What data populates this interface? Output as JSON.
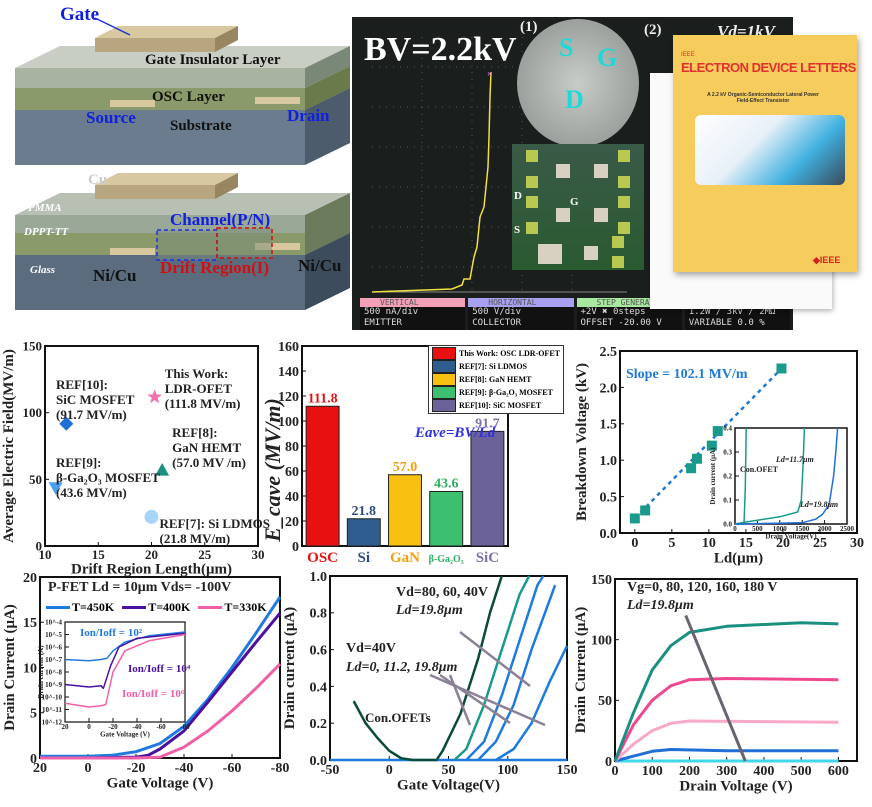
{
  "device_diagram": {
    "top": {
      "gate": "Gate",
      "gate_insulator": "Gate Insulator Layer",
      "osc": "OSC Layer",
      "source": "Source",
      "drain": "Drain",
      "substrate": "Substrate"
    },
    "bottom": {
      "cu": "Cu",
      "pmma": "PMMA",
      "dppt": "DPPT-TT",
      "glass": "Glass",
      "nicu_left": "Ni/Cu",
      "nicu_right": "Ni/Cu",
      "channel": "Channel(P/N)",
      "drift": "Drift Region(I)"
    }
  },
  "photo": {
    "bv_label": "BV=2.2kV",
    "panel1": "(1)",
    "panel2": "(2)",
    "vd_label": "Vd=1kV",
    "probe_s": "S",
    "probe_g": "G",
    "probe_d": "D",
    "pad_d": "D",
    "pad_g": "G",
    "pad_s": "S",
    "scope": [
      {
        "title": "VERTICAL",
        "line1": "500 nA/div",
        "line2": "EMITTER",
        "color": "#f4a0b8"
      },
      {
        "title": "HORIZONTAL",
        "line1": "500  V/div",
        "line2": "COLLECTOR",
        "color": "#a8a0f0"
      },
      {
        "title": "STEP GENERATOR",
        "line1": "+2V  ✖ 0steps",
        "line2": "OFFSET -20.00 V",
        "color": "#a8e8a0"
      },
      {
        "title": "",
        "line1": "1.2W /  3kV /   2MΩ",
        "line2": "VARIABLE     0.0 %",
        "color": "#f0c060"
      }
    ],
    "cover": {
      "ieee": "IEEE",
      "journal": "ELECTRON DEVICE LETTERS",
      "article": "A 2.2 kV Organic-Semiconductor Lateral Power Field-Effect Transistor",
      "brand": "◆IEEE"
    }
  },
  "chart_data": [
    {
      "id": "efield",
      "type": "scatter",
      "xlabel": "Drift Region Length(μm)",
      "ylabel": "Average Electric Field(MV/m)",
      "xlim": [
        10,
        30
      ],
      "ylim": [
        0,
        150
      ],
      "xticks": [
        10,
        15,
        20,
        25,
        30
      ],
      "yticks": [
        0,
        50,
        100,
        150
      ],
      "points": [
        {
          "x": 12,
          "y": 91.7,
          "marker": "diamond",
          "color": "#1f6fd6",
          "label": [
            "REF[10]:",
            "SiC MOSFET",
            "(91.7 MV/m)"
          ]
        },
        {
          "x": 20.3,
          "y": 111.8,
          "marker": "star",
          "color": "#f070b0",
          "label": [
            "This Work:",
            "LDR-OFET",
            "(111.8 MV/m)"
          ]
        },
        {
          "x": 21,
          "y": 57.0,
          "marker": "triangle",
          "color": "#1a9080",
          "label": [
            "REF[8]:",
            "GaN HEMT",
            "(57.0 MV /m)"
          ]
        },
        {
          "x": 11,
          "y": 43.6,
          "marker": "triangle-down",
          "color": "#4aa0f0",
          "label": [
            "REF[9]:",
            "β-Ga₂O₃ MOSFET",
            "(43.6 MV/m)"
          ]
        },
        {
          "x": 20,
          "y": 21.8,
          "marker": "circle",
          "color": "#a8d4f8",
          "label": [
            "REF[7]: Si LDMOS",
            "(21.8 MV/m)"
          ]
        }
      ]
    },
    {
      "id": "eave",
      "type": "bar",
      "ylabel": "E_cave (MV/m)",
      "ylim": [
        0,
        160
      ],
      "yticks": [
        0,
        20,
        40,
        60,
        80,
        100,
        120,
        140,
        160
      ],
      "categories": [
        "OSC",
        "Si",
        "GaN",
        "β-Ga₂O₃",
        "SiC"
      ],
      "values": [
        111.8,
        21.8,
        57.0,
        43.6,
        91.7
      ],
      "value_labels": [
        "111.8",
        "21.8",
        "57.0",
        "43.6",
        "91.7"
      ],
      "colors": [
        "#e81010",
        "#2e5d8e",
        "#f8c010",
        "#3cc070",
        "#6a6298"
      ],
      "label_colors": [
        "#e81010",
        "#2e4a7e",
        "#f0a010",
        "#30b060",
        "#7a72a8"
      ],
      "legend": [
        "This Work: OSC LDR-OFET",
        "REF[7]: Si LDMOS",
        "REF[8]: GaN HEMT",
        "REF[9]: β-Ga₂O₃ MOSFET",
        "REF[10]: SiC MOSFET"
      ],
      "legend_placement": "top-right",
      "annotation": "Eave=BV/Ld"
    },
    {
      "id": "bv",
      "type": "scatter",
      "xlabel": "Ld(μm)",
      "ylabel": "Breakdown Voltage (kV)",
      "xlim": [
        -2,
        30
      ],
      "ylim": [
        0,
        2.5
      ],
      "xticks": [
        0,
        5,
        10,
        15,
        20,
        25,
        30
      ],
      "yticks": [
        0,
        0.5,
        1.0,
        1.5,
        2.0,
        2.5
      ],
      "ytick_labels": [
        "0.0",
        "0.5",
        "1.0",
        "1.5",
        "2.0",
        "2.5"
      ],
      "points": [
        {
          "x": 0,
          "y": 0.2
        },
        {
          "x": 1.4,
          "y": 0.31
        },
        {
          "x": 7.6,
          "y": 0.89
        },
        {
          "x": 8.4,
          "y": 1.02
        },
        {
          "x": 10.4,
          "y": 1.2
        },
        {
          "x": 11.2,
          "y": 1.4
        },
        {
          "x": 19.8,
          "y": 2.26
        }
      ],
      "marker_color": "#1a9a8a",
      "fit_color": "#1f7ad6",
      "annotation": "Slope = 102.1 MV/m",
      "inset": {
        "xlabel": "Drain Voltage(V)",
        "ylabel": "Drain current (μA)",
        "xlim": [
          0,
          2500
        ],
        "ylim": [
          0,
          0.4
        ],
        "xticks": [
          0,
          500,
          1000,
          1500,
          2000,
          2500
        ],
        "yticks": [
          0,
          0.1,
          0.2,
          0.3,
          0.4
        ],
        "ytick_labels": [
          "0.0",
          "0.1",
          "0.2",
          "0.3",
          "0.4"
        ],
        "series": [
          {
            "name": "Con.OFET",
            "color": "#1a9a8a",
            "x": [
              0,
              200,
              230,
              250
            ],
            "y": [
              0,
              0,
              0.15,
              0.4
            ]
          },
          {
            "name": "Ld=11.7μm",
            "color": "#1a9a8a",
            "x": [
              0,
              300,
              1000,
              1400,
              1480,
              1520,
              1550
            ],
            "y": [
              0,
              0.01,
              0.03,
              0.05,
              0.1,
              0.25,
              0.4
            ]
          },
          {
            "name": "Ld=19.8μm",
            "color": "#1f6fd6",
            "x": [
              0,
              1500,
              1800,
              1950,
              2100,
              2200,
              2250,
              2290
            ],
            "y": [
              0,
              0.005,
              0.02,
              0.04,
              0.08,
              0.2,
              0.3,
              0.4
            ]
          }
        ]
      }
    },
    {
      "id": "transfer_T",
      "type": "line",
      "title": "P-FET  Ld = 10μm Vds= -100V",
      "xlabel": "Gate Voltage (V)",
      "ylabel": "Drain Current (μA)",
      "xlim": [
        20,
        -80
      ],
      "ylim": [
        0,
        20
      ],
      "xticks": [
        20,
        0,
        -20,
        -40,
        -60,
        -80
      ],
      "yticks": [
        0,
        5,
        10,
        15,
        20
      ],
      "legend_placement": "top",
      "series": [
        {
          "name": "T=450K",
          "color": "#1f7ae0",
          "x": [
            20,
            0,
            -10,
            -20,
            -30,
            -40,
            -50,
            -60,
            -70,
            -80
          ],
          "y": [
            0.2,
            0.2,
            0.3,
            0.7,
            1.6,
            3.5,
            6.5,
            10,
            13.8,
            17.8
          ]
        },
        {
          "name": "T=400K",
          "color": "#4a10a0",
          "x": [
            20,
            0,
            -20,
            -25,
            -30,
            -40,
            -50,
            -60,
            -70,
            -80
          ],
          "y": [
            0,
            0,
            0.1,
            0.3,
            1.0,
            3.0,
            6.2,
            9.5,
            12.8,
            16
          ]
        },
        {
          "name": "T=330K",
          "color": "#f060a8",
          "x": [
            20,
            -20,
            -30,
            -40,
            -50,
            -60,
            -70,
            -80
          ],
          "y": [
            0,
            0,
            0.1,
            1.2,
            3.0,
            5.2,
            7.7,
            10.4
          ]
        }
      ],
      "inset": {
        "xlabel": "Gate Voltage (V)",
        "ylabel": "Drain current (A)",
        "xlim": [
          20,
          -80
        ],
        "ylim_log10": [
          -12,
          -4
        ],
        "xticks": [
          20,
          0,
          -20,
          -40,
          -60,
          -80
        ],
        "yticks_log10": [
          -12,
          -11,
          -10,
          -9,
          -8,
          -7,
          -6,
          -5,
          -4
        ],
        "series": [
          {
            "name": "T=450K",
            "color": "#1f7ae0",
            "x": [
              20,
              0,
              -10,
              -15,
              -20,
              -30,
              -50,
              -80
            ],
            "log10y": [
              -7,
              -7.1,
              -7,
              -6.9,
              -6.3,
              -5.6,
              -5.1,
              -4.8
            ]
          },
          {
            "name": "T=400K",
            "color": "#4a10a0",
            "x": [
              20,
              0,
              -10,
              -12,
              -18,
              -25,
              -40,
              -80
            ],
            "log10y": [
              -9,
              -9.2,
              -9.1,
              -9.3,
              -7.5,
              -6,
              -5.3,
              -4.9
            ]
          },
          {
            "name": "T=330K",
            "color": "#f060a8",
            "x": [
              20,
              0,
              -10,
              -14,
              -20,
              -30,
              -50,
              -80
            ],
            "log10y": [
              -10.5,
              -10.8,
              -10.7,
              -10.6,
              -8,
              -6.3,
              -5.5,
              -5.0
            ]
          }
        ],
        "annotations": [
          "Ion/Ioff = 10²",
          "Ion/Ioff = 10⁴",
          "Ion/Ioff = 10⁶"
        ]
      }
    },
    {
      "id": "transfer_Ld",
      "type": "line",
      "xlabel": "Gate Voltage(V)",
      "ylabel": "Drain current (μA)",
      "xlim": [
        -50,
        150
      ],
      "ylim": [
        0,
        1.0
      ],
      "xticks": [
        -50,
        0,
        50,
        100,
        150
      ],
      "yticks": [
        0,
        0.2,
        0.4,
        0.6,
        0.8,
        1.0
      ],
      "ytick_labels": [
        "0.0",
        "0.2",
        "0.4",
        "0.6",
        "0.8",
        "1.0"
      ],
      "series": [
        {
          "color": "#1f7ae0",
          "x": [
            -50,
            150
          ],
          "y": [
            0,
            0
          ]
        },
        {
          "color": "#0a4a3a",
          "x": [
            -30,
            -20,
            -10,
            0,
            10,
            20,
            40,
            45,
            60,
            75,
            85,
            95
          ],
          "y": [
            0.32,
            0.2,
            0.12,
            0.05,
            0.01,
            0,
            0,
            0.05,
            0.25,
            0.55,
            0.8,
            1.0
          ]
        },
        {
          "color": "#1a9a8a",
          "x": [
            55,
            65,
            80,
            95,
            110,
            118
          ],
          "y": [
            0,
            0.06,
            0.3,
            0.6,
            0.9,
            1.0
          ]
        },
        {
          "color": "#1f7ae0",
          "x": [
            65,
            80,
            95,
            110,
            125,
            130
          ],
          "y": [
            0,
            0.1,
            0.35,
            0.65,
            0.95,
            1.0
          ]
        },
        {
          "color": "#1f7ae0",
          "x": [
            75,
            90,
            105,
            120,
            140
          ],
          "y": [
            0,
            0.1,
            0.3,
            0.6,
            0.95
          ]
        },
        {
          "color": "#1f7ae0",
          "x": [
            90,
            105,
            120,
            135,
            150
          ],
          "y": [
            0,
            0.06,
            0.2,
            0.42,
            0.62
          ]
        }
      ],
      "annotations": [
        "Vd=80, 60, 40V",
        "Ld=19.8μm",
        "Vd=40V",
        "Ld=0, 11.2, 19.8μm",
        "Con.OFETs"
      ]
    },
    {
      "id": "output",
      "type": "line",
      "xlabel": "Drain Voltage (V)",
      "ylabel": "Drain Current (μA)",
      "xlim": [
        0,
        650
      ],
      "ylim": [
        0,
        150
      ],
      "xticks": [
        0,
        100,
        200,
        300,
        400,
        500,
        600
      ],
      "yticks": [
        0,
        50,
        100,
        150
      ],
      "series": [
        {
          "color": "#40d8e8",
          "x": [
            0,
            600
          ],
          "y": [
            0,
            0
          ]
        },
        {
          "color": "#1f6fd6",
          "x": [
            0,
            50,
            100,
            150,
            300,
            600
          ],
          "y": [
            0,
            4,
            8,
            9.5,
            8.5,
            8.5
          ]
        },
        {
          "color": "#f8a8c8",
          "x": [
            0,
            50,
            100,
            150,
            200,
            600
          ],
          "y": [
            0,
            14,
            25,
            31,
            33,
            32
          ]
        },
        {
          "color": "#f04890",
          "x": [
            0,
            50,
            100,
            150,
            200,
            300,
            600
          ],
          "y": [
            0,
            30,
            50,
            62,
            67,
            68,
            67
          ]
        },
        {
          "color": "#1a9080",
          "x": [
            0,
            50,
            100,
            150,
            200,
            300,
            500,
            600
          ],
          "y": [
            0,
            40,
            75,
            95,
            106,
            111,
            114,
            113
          ]
        }
      ],
      "annotations": [
        "Vg=0, 80, 120, 160, 180 V",
        "Ld=19.8μm"
      ]
    }
  ]
}
